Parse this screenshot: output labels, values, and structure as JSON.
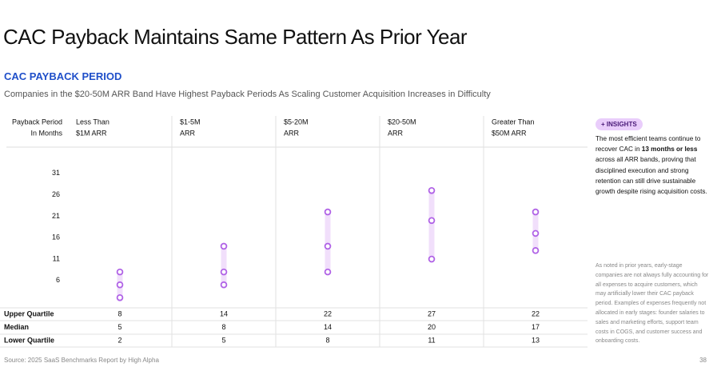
{
  "title": "CAC Payback Maintains Same Pattern As Prior Year",
  "chart_data": {
    "type": "dot-range",
    "title": "CAC PAYBACK PERIOD",
    "subtitle": "Companies in the $20-50M ARR Band Have Highest Payback Periods As Scaling Customer Acquisition Increases in Difficulty",
    "y_label": [
      "Payback Period",
      "In Months"
    ],
    "categories": [
      [
        "Less Than",
        "$1M ARR"
      ],
      [
        "$1-5M",
        "ARR"
      ],
      [
        "$5-20M",
        "ARR"
      ],
      [
        "$20-50M",
        "ARR"
      ],
      [
        "Greater Than",
        "$50M ARR"
      ]
    ],
    "series": [
      {
        "name": "Upper Quartile",
        "color": "#b062e6",
        "values": [
          8,
          14,
          22,
          27,
          22
        ]
      },
      {
        "name": "Median",
        "color": "#b062e6",
        "values": [
          5,
          8,
          14,
          20,
          17
        ]
      },
      {
        "name": "Lower Quartile",
        "color": "#b062e6",
        "values": [
          2,
          5,
          8,
          11,
          13
        ]
      }
    ],
    "range_color": "#f1dffb",
    "ylim": [
      0,
      37
    ],
    "yticks": [
      6,
      11,
      16,
      21,
      26,
      31
    ]
  },
  "insights": {
    "label": "+ INSIGHTS",
    "text": [
      "The most efficient teams continue to recover CAC in ",
      "13 months or less",
      " across all ARR bands, proving that disciplined execution and strong retention can still drive sustainable growth despite rising acquisition costs."
    ]
  },
  "note": "As noted in prior years, early-stage companies are not always fully accounting for all expenses to acquire customers, which may artificially lower their CAC payback period. Examples of expenses frequently not allocated in early stages: founder salaries to sales and marketing efforts, support team costs in COGS, and customer success and onboarding costs.",
  "footer": {
    "source": "Source: 2025 SaaS Benchmarks Report by High Alpha",
    "page": "38"
  }
}
